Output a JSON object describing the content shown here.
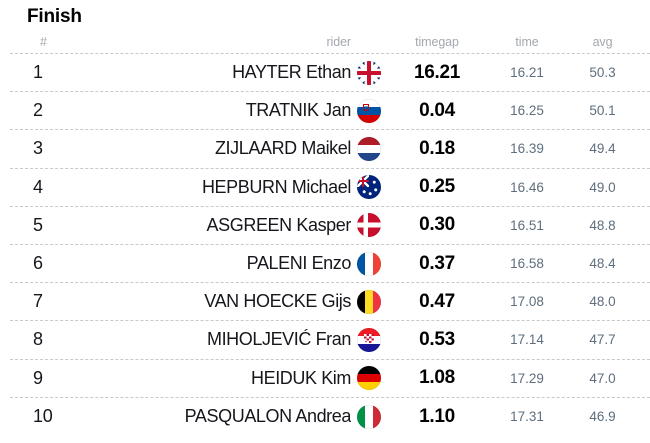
{
  "title": "Finish",
  "colors": {
    "header_text": "#a3a9af",
    "primary_text": "#15171c",
    "timegap_text": "#000000",
    "muted_value_text": "#5e6e7d",
    "separator": "#c9c9c9"
  },
  "table": {
    "headers": {
      "rank": "#",
      "rider": "rider",
      "timegap": "timegap",
      "time": "time",
      "avg": "avg"
    },
    "rows": [
      {
        "rank": "1",
        "rider": "HAYTER Ethan",
        "flag": "gb",
        "timegap": "16.21",
        "time": "16.21",
        "avg": "50.3"
      },
      {
        "rank": "2",
        "rider": "TRATNIK Jan",
        "flag": "si",
        "timegap": "0.04",
        "time": "16.25",
        "avg": "50.1"
      },
      {
        "rank": "3",
        "rider": "ZIJLAARD Maikel",
        "flag": "nl",
        "timegap": "0.18",
        "time": "16.39",
        "avg": "49.4"
      },
      {
        "rank": "4",
        "rider": "HEPBURN Michael",
        "flag": "au",
        "timegap": "0.25",
        "time": "16.46",
        "avg": "49.0"
      },
      {
        "rank": "5",
        "rider": "ASGREEN Kasper",
        "flag": "dk",
        "timegap": "0.30",
        "time": "16.51",
        "avg": "48.8"
      },
      {
        "rank": "6",
        "rider": "PALENI Enzo",
        "flag": "fr",
        "timegap": "0.37",
        "time": "16.58",
        "avg": "48.4"
      },
      {
        "rank": "7",
        "rider": "VAN HOECKE Gijs",
        "flag": "be",
        "timegap": "0.47",
        "time": "17.08",
        "avg": "48.0"
      },
      {
        "rank": "8",
        "rider": "MIHOLJEVIĆ Fran",
        "flag": "hr",
        "timegap": "0.53",
        "time": "17.14",
        "avg": "47.7"
      },
      {
        "rank": "9",
        "rider": "HEIDUK Kim",
        "flag": "de",
        "timegap": "1.08",
        "time": "17.29",
        "avg": "47.0"
      },
      {
        "rank": "10",
        "rider": "PASQUALON Andrea",
        "flag": "it",
        "timegap": "1.10",
        "time": "17.31",
        "avg": "46.9"
      }
    ]
  }
}
